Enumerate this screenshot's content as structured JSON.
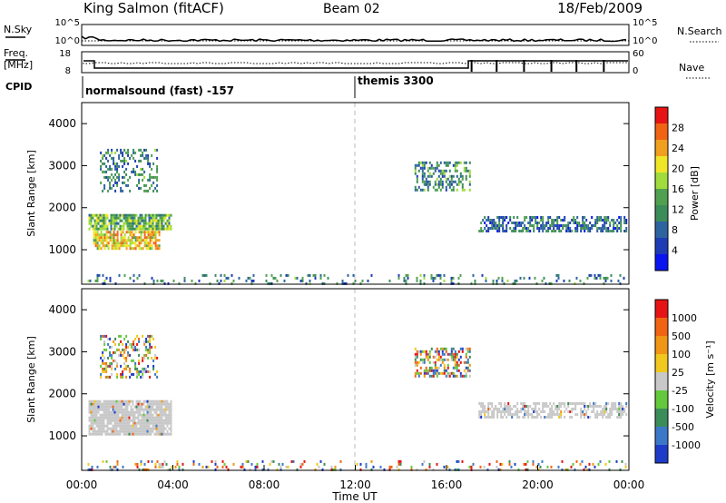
{
  "header": {
    "station": "King Salmon (fitACF)",
    "beam": "Beam 02",
    "date": "18/Feb/2009"
  },
  "housekeeping": {
    "nsky_label": "N.Sky",
    "nsearch_label": "N.Search",
    "noise_ticks_left": [
      "10^5",
      "10^0"
    ],
    "noise_ticks_right": [
      "10^5",
      "10^0"
    ],
    "freq_label_1": "Freq.",
    "freq_label_2": "[MHz]",
    "freq_ticks": [
      "18",
      "8"
    ],
    "nave_label": "Nave",
    "nave_ticks": [
      "60",
      "0"
    ],
    "cpid_label": "CPID",
    "cpid_entries": [
      {
        "label": "normalsound (fast) -157",
        "start_hour": 0
      },
      {
        "label": "themis 3300",
        "start_hour": 12
      }
    ]
  },
  "x_axis": {
    "label": "Time UT",
    "ticks": [
      "00:00",
      "04:00",
      "08:00",
      "12:00",
      "16:00",
      "20:00",
      "00:00"
    ],
    "range_hours": [
      0,
      24
    ]
  },
  "chart_data": [
    {
      "type": "heatmap",
      "panel": "power",
      "ylabel": "Slant Range [km]",
      "yticks": [
        "1000",
        "2000",
        "3000",
        "4000"
      ],
      "ylim": [
        180,
        4500
      ],
      "colorbar": {
        "label": "Power [dB]",
        "ticks": [
          "4",
          "8",
          "12",
          "16",
          "20",
          "24",
          "28"
        ],
        "colors": [
          "#0a14f0",
          "#1e3cb4",
          "#2d64a0",
          "#3c8c5a",
          "#50a050",
          "#a0dc3c",
          "#f0e628",
          "#f0a01e",
          "#f06414",
          "#e61414"
        ]
      },
      "regions": [
        {
          "t": [
            0.3,
            3.9
          ],
          "r": [
            1500,
            1850
          ],
          "density": 0.85,
          "level": 0.45
        },
        {
          "t": [
            0.5,
            3.4
          ],
          "r": [
            1050,
            1450
          ],
          "density": 0.75,
          "level": 0.7
        },
        {
          "t": [
            0.8,
            3.3
          ],
          "r": [
            2400,
            3400
          ],
          "density": 0.35,
          "level": 0.3
        },
        {
          "t": [
            14.6,
            17.0
          ],
          "r": [
            2400,
            3100
          ],
          "density": 0.5,
          "level": 0.35
        },
        {
          "t": [
            17.4,
            23.9
          ],
          "r": [
            1450,
            1800
          ],
          "density": 0.55,
          "level": 0.25
        },
        {
          "t": [
            0.1,
            23.9
          ],
          "r": [
            180,
            420
          ],
          "density": 0.18,
          "level": 0.3
        }
      ]
    },
    {
      "type": "heatmap",
      "panel": "velocity",
      "ylabel": "Slant Range [km]",
      "yticks": [
        "1000",
        "2000",
        "3000",
        "4000"
      ],
      "ylim": [
        180,
        4500
      ],
      "colorbar": {
        "label": "Velocity [m s⁻¹]",
        "ticks": [
          "1000",
          "500",
          "100",
          "25",
          "-25",
          "-100",
          "-500",
          "-1000"
        ],
        "colors": [
          "#1e3cc8",
          "#3c78c8",
          "#3c8c5a",
          "#64c83c",
          "#c8c8c8",
          "#f0c81e",
          "#f09614",
          "#f06414",
          "#e61414"
        ]
      },
      "regions": [
        {
          "t": [
            0.3,
            3.9
          ],
          "r": [
            1050,
            1850
          ],
          "density": 0.9,
          "level": "ground"
        },
        {
          "t": [
            0.8,
            3.3
          ],
          "r": [
            2400,
            3400
          ],
          "density": 0.35,
          "level": "mixed"
        },
        {
          "t": [
            14.6,
            17.0
          ],
          "r": [
            2400,
            3100
          ],
          "density": 0.5,
          "level": "mixed"
        },
        {
          "t": [
            17.4,
            23.9
          ],
          "r": [
            1450,
            1800
          ],
          "density": 0.6,
          "level": "ground"
        },
        {
          "t": [
            0.1,
            23.9
          ],
          "r": [
            180,
            420
          ],
          "density": 0.18,
          "level": "mixed"
        }
      ]
    }
  ]
}
